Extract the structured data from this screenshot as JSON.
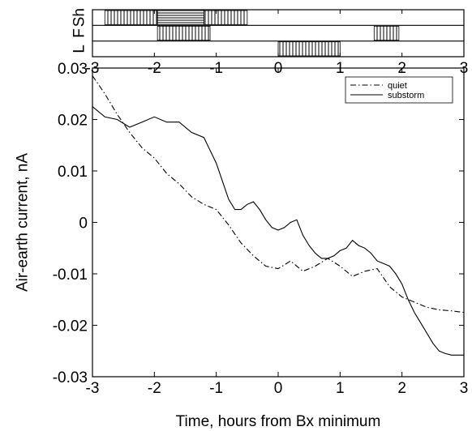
{
  "chart_data": [
    {
      "type": "interval-bands",
      "xlim": [
        -3,
        3
      ],
      "x_ticks": [
        "-3",
        "-2",
        "-1",
        "0",
        "1",
        "2",
        "3"
      ],
      "rows": [
        {
          "label": "Sh",
          "intervals": [
            {
              "start": -2.8,
              "end": -1.95,
              "pattern": "vertical"
            },
            {
              "start": -1.95,
              "end": -1.2,
              "pattern": "horizontal"
            },
            {
              "start": -1.2,
              "end": -0.5,
              "pattern": "vertical"
            }
          ]
        },
        {
          "label": "F",
          "intervals": [
            {
              "start": -1.95,
              "end": -1.1,
              "pattern": "vertical"
            },
            {
              "start": 1.55,
              "end": 1.95,
              "pattern": "vertical"
            }
          ]
        },
        {
          "label": "L",
          "intervals": [
            {
              "start": 0.0,
              "end": 1.0,
              "pattern": "vertical"
            }
          ]
        }
      ]
    },
    {
      "type": "line",
      "xlabel": "Time, hours from Bx minimum",
      "ylabel": "Air-earth current, nA",
      "xlim": [
        -3,
        3
      ],
      "ylim": [
        -0.03,
        0.03
      ],
      "x_ticks": [
        "-3",
        "-2",
        "-1",
        "0",
        "1",
        "2",
        "3"
      ],
      "y_ticks": [
        "0.03",
        "0.02",
        "0.01",
        "0",
        "-0.01",
        "-0.02",
        "-0.03"
      ],
      "grid": false,
      "legend_position": "top-right",
      "series": [
        {
          "name": "quiet",
          "style": "dash-dot",
          "x": [
            -3.0,
            -2.8,
            -2.6,
            -2.4,
            -2.2,
            -2.0,
            -1.8,
            -1.6,
            -1.4,
            -1.2,
            -1.0,
            -0.8,
            -0.6,
            -0.4,
            -0.2,
            0.0,
            0.2,
            0.4,
            0.6,
            0.8,
            1.0,
            1.2,
            1.4,
            1.6,
            1.8,
            2.0,
            2.2,
            2.4,
            2.6,
            2.8,
            3.0
          ],
          "y": [
            0.0285,
            0.025,
            0.021,
            0.0175,
            0.0145,
            0.0125,
            0.0095,
            0.0075,
            0.005,
            0.0035,
            0.0025,
            -0.0005,
            -0.004,
            -0.0065,
            -0.0085,
            -0.009,
            -0.0075,
            -0.0095,
            -0.0085,
            -0.007,
            -0.0085,
            -0.0105,
            -0.0095,
            -0.009,
            -0.0125,
            -0.0145,
            -0.0155,
            -0.0165,
            -0.017,
            -0.0172,
            -0.0175
          ]
        },
        {
          "name": "substorm",
          "style": "solid",
          "x": [
            -3.0,
            -2.8,
            -2.6,
            -2.4,
            -2.2,
            -2.0,
            -1.8,
            -1.6,
            -1.4,
            -1.2,
            -1.0,
            -0.8,
            -0.7,
            -0.6,
            -0.5,
            -0.4,
            -0.3,
            -0.2,
            -0.1,
            0.0,
            0.1,
            0.2,
            0.3,
            0.4,
            0.5,
            0.6,
            0.7,
            0.8,
            0.9,
            1.0,
            1.1,
            1.2,
            1.3,
            1.4,
            1.5,
            1.6,
            1.7,
            1.8,
            1.9,
            2.0,
            2.1,
            2.2,
            2.3,
            2.4,
            2.5,
            2.6,
            2.7,
            2.8,
            3.0
          ],
          "y": [
            0.0225,
            0.0205,
            0.02,
            0.0185,
            0.0195,
            0.0205,
            0.0195,
            0.0195,
            0.0175,
            0.0165,
            0.0115,
            0.0045,
            0.0025,
            0.0025,
            0.0035,
            0.004,
            0.0025,
            0.0005,
            -0.001,
            -0.0015,
            -0.001,
            -0.0,
            0.0005,
            -0.0025,
            -0.0045,
            -0.006,
            -0.007,
            -0.007,
            -0.0065,
            -0.0055,
            -0.005,
            -0.0035,
            -0.0045,
            -0.005,
            -0.006,
            -0.0075,
            -0.008,
            -0.0085,
            -0.01,
            -0.012,
            -0.015,
            -0.0175,
            -0.0195,
            -0.0215,
            -0.0235,
            -0.025,
            -0.0255,
            -0.0258,
            -0.0258
          ]
        }
      ]
    }
  ]
}
